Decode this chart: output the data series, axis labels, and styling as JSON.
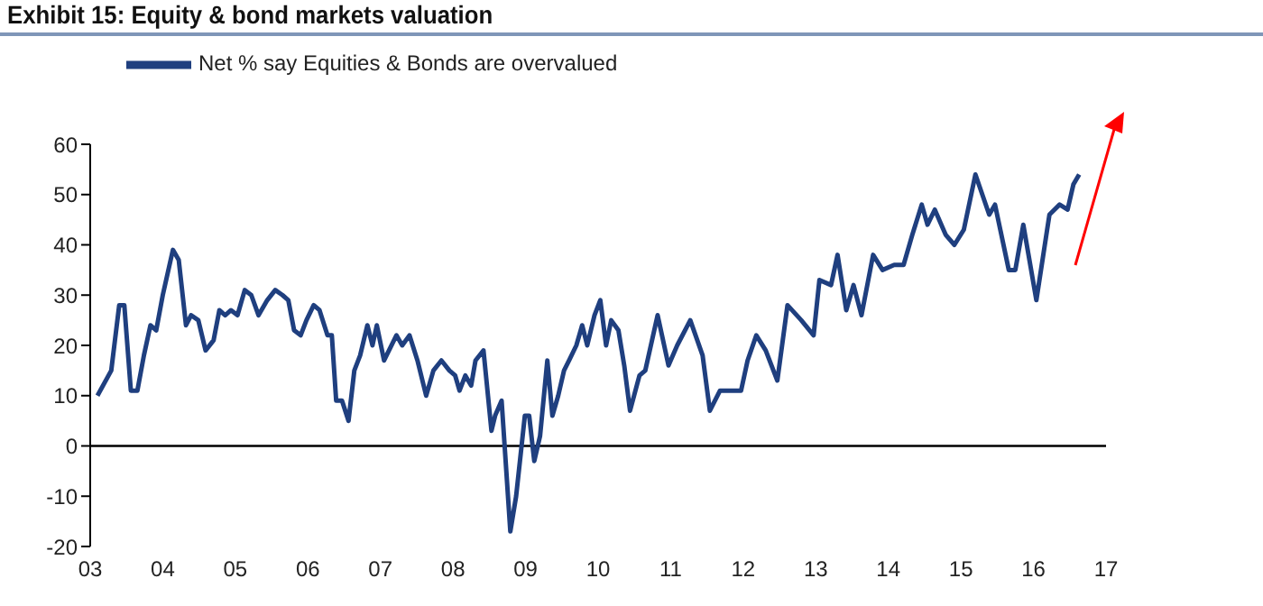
{
  "chart_data": {
    "type": "line",
    "title": "Exhibit 15: Equity & bond markets valuation",
    "x": [
      2003.1,
      2003.29,
      2003.4,
      2003.47,
      2003.56,
      2003.65,
      2003.74,
      2003.83,
      2003.91,
      2004.0,
      2004.14,
      2004.22,
      2004.32,
      2004.39,
      2004.49,
      2004.59,
      2004.7,
      2004.78,
      2004.86,
      2004.94,
      2005.03,
      2005.13,
      2005.22,
      2005.32,
      2005.44,
      2005.55,
      2005.65,
      2005.73,
      2005.81,
      2005.9,
      2005.98,
      2006.08,
      2006.16,
      2006.27,
      2006.33,
      2006.39,
      2006.47,
      2006.56,
      2006.64,
      2006.72,
      2006.82,
      2006.89,
      2006.95,
      2007.05,
      2007.22,
      2007.3,
      2007.4,
      2007.51,
      2007.63,
      2007.73,
      2007.84,
      2007.95,
      2008.03,
      2008.09,
      2008.17,
      2008.25,
      2008.31,
      2008.42,
      2008.53,
      2008.58,
      2008.67,
      2008.79,
      2008.87,
      2008.99,
      2009.05,
      2009.12,
      2009.2,
      2009.3,
      2009.37,
      2009.45,
      2009.53,
      2009.6,
      2009.7,
      2009.78,
      2009.85,
      2009.95,
      2010.03,
      2010.11,
      2010.18,
      2010.28,
      2010.36,
      2010.44,
      2010.57,
      2010.65,
      2010.82,
      2010.97,
      2011.09,
      2011.27,
      2011.44,
      2011.54,
      2011.68,
      2011.81,
      2011.97,
      2012.06,
      2012.18,
      2012.31,
      2012.47,
      2012.61,
      2012.8,
      2012.97,
      2013.05,
      2013.21,
      2013.3,
      2013.42,
      2013.52,
      2013.63,
      2013.79,
      2013.92,
      2014.08,
      2014.21,
      2014.33,
      2014.46,
      2014.54,
      2014.64,
      2014.79,
      2014.91,
      2015.04,
      2015.2,
      2015.39,
      2015.47,
      2015.66,
      2015.75,
      2015.86,
      2016.04,
      2016.22,
      2016.36,
      2016.47,
      2016.55,
      2016.63
    ],
    "series": [
      {
        "name": "Net % say Equities & Bonds are overvalued",
        "color": "#1f3f7f",
        "values": [
          10,
          15,
          28,
          28,
          11,
          11,
          18,
          24,
          23,
          30,
          39,
          37,
          24,
          26,
          25,
          19,
          21,
          27,
          26,
          27,
          26,
          31,
          30,
          26,
          29,
          31,
          30,
          29,
          23,
          22,
          25,
          28,
          27,
          22,
          22,
          9,
          9,
          5,
          15,
          18,
          24,
          20,
          24,
          17,
          22,
          20,
          22,
          17,
          10,
          15,
          17,
          15,
          14,
          11,
          14,
          12,
          17,
          19,
          3,
          6,
          9,
          -17,
          -10,
          6,
          6,
          -3,
          2,
          17,
          6,
          10,
          15,
          17,
          20,
          24,
          20,
          26,
          29,
          20,
          25,
          23,
          16,
          7,
          14,
          15,
          26,
          16,
          20,
          25,
          18,
          7,
          11,
          11,
          11,
          17,
          22,
          19,
          13,
          28,
          25,
          22,
          33,
          32,
          38,
          27,
          32,
          26,
          38,
          35,
          36,
          36,
          42,
          48,
          44,
          47,
          42,
          40,
          43,
          54,
          46,
          48,
          35,
          35,
          44,
          29,
          46,
          48,
          47,
          52,
          54
        ]
      }
    ],
    "xlim": [
      2003,
      2017
    ],
    "xticks": [
      {
        "value": 2003,
        "label": "03"
      },
      {
        "value": 2004,
        "label": "04"
      },
      {
        "value": 2005,
        "label": "05"
      },
      {
        "value": 2006,
        "label": "06"
      },
      {
        "value": 2007,
        "label": "07"
      },
      {
        "value": 2008,
        "label": "08"
      },
      {
        "value": 2009,
        "label": "09"
      },
      {
        "value": 2010,
        "label": "10"
      },
      {
        "value": 2011,
        "label": "11"
      },
      {
        "value": 2012,
        "label": "12"
      },
      {
        "value": 2013,
        "label": "13"
      },
      {
        "value": 2014,
        "label": "14"
      },
      {
        "value": 2015,
        "label": "15"
      },
      {
        "value": 2016,
        "label": "16"
      },
      {
        "value": 2017,
        "label": "17"
      }
    ],
    "ylim": [
      -20,
      60
    ],
    "yticks": [
      -20,
      -10,
      0,
      10,
      20,
      30,
      40,
      50,
      60
    ],
    "ref_lines": [
      {
        "axis": "y",
        "value": 0,
        "color": "#000000"
      }
    ],
    "grid": false,
    "legend": "top left",
    "marker": "none",
    "line_style": "solid"
  }
}
